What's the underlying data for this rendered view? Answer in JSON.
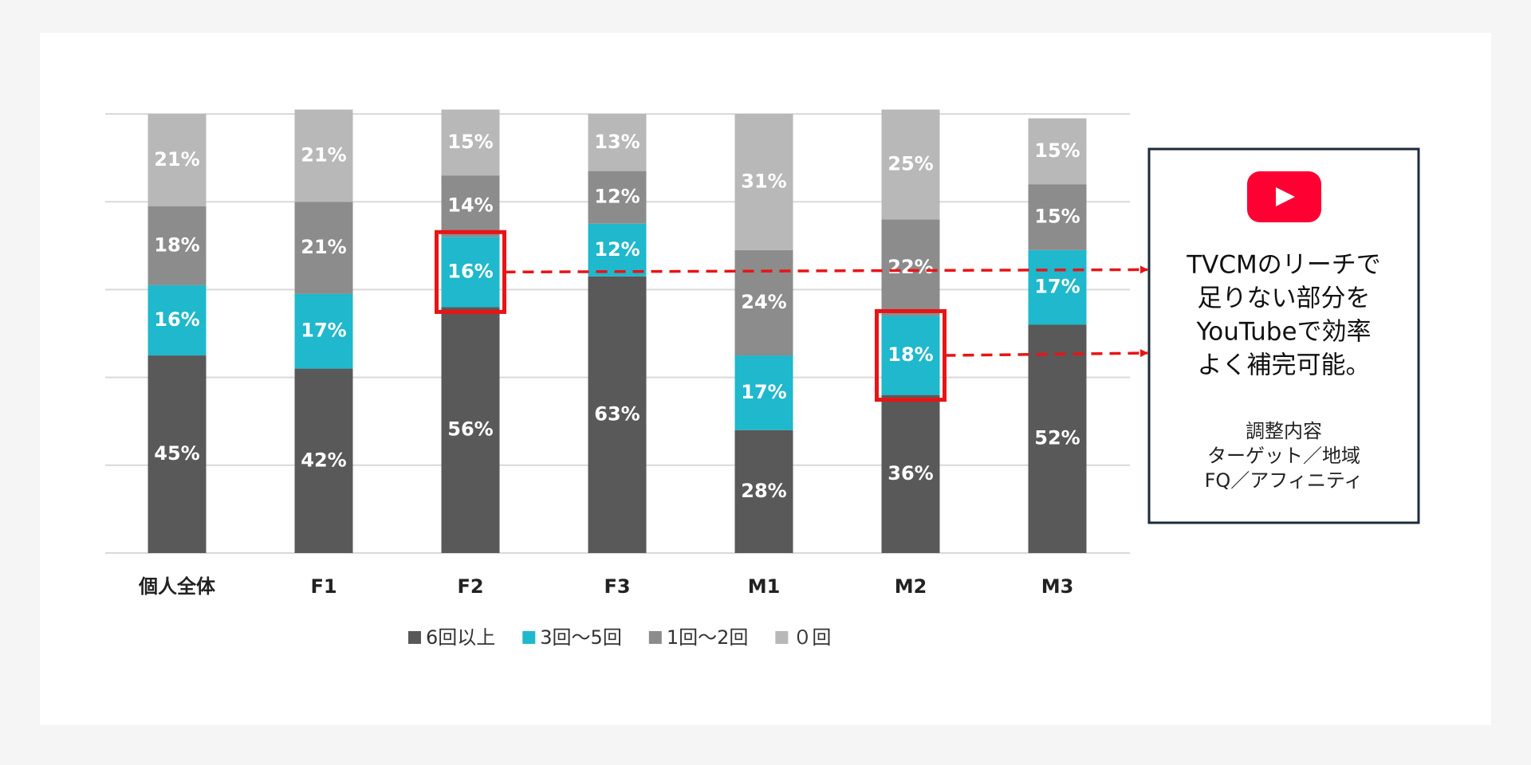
{
  "chart_data": {
    "type": "stacked_bar",
    "categories": [
      "個人全体",
      "F1",
      "F2",
      "F3",
      "M1",
      "M2",
      "M3"
    ],
    "series": [
      {
        "name": "6回以上",
        "color": "#595959",
        "values": [
          45,
          42,
          56,
          63,
          28,
          36,
          52
        ],
        "value_labels": [
          "45%",
          "42%",
          "56%",
          "63%",
          "28%",
          "36%",
          "52%"
        ]
      },
      {
        "name": "3回〜5回",
        "color": "#1fb8cc",
        "values": [
          16,
          17,
          16,
          12,
          17,
          18,
          17
        ],
        "value_labels": [
          "16%",
          "17%",
          "16%",
          "12%",
          "17%",
          "18%",
          "17%"
        ]
      },
      {
        "name": "1回〜2回",
        "color": "#8c8c8c",
        "values": [
          18,
          21,
          14,
          12,
          24,
          22,
          15
        ],
        "value_labels": [
          "18%",
          "21%",
          "14%",
          "12%",
          "24%",
          "22%",
          "15%"
        ]
      },
      {
        "name": "０回",
        "color": "#b8b8b8",
        "values": [
          21,
          21,
          15,
          13,
          31,
          25,
          15
        ],
        "value_labels": [
          "21%",
          "21%",
          "15%",
          "13%",
          "31%",
          "25%",
          "15%"
        ]
      }
    ],
    "ylim": [
      0,
      100
    ],
    "yticks": [
      0,
      20,
      40,
      60,
      80,
      100
    ],
    "grid": true,
    "legend": "bottom",
    "highlight": [
      [
        1,
        2
      ],
      [
        1,
        5
      ]
    ],
    "highlight_color": "#e81416",
    "callout": {
      "lines": [
        "TVCMのリーチで",
        "足りない部分を",
        "YouTubeで効率",
        "よく補完可能。"
      ],
      "subtitle": "調整内容",
      "details": [
        "ターゲット／地域",
        "FQ／アフィニティ"
      ]
    }
  }
}
